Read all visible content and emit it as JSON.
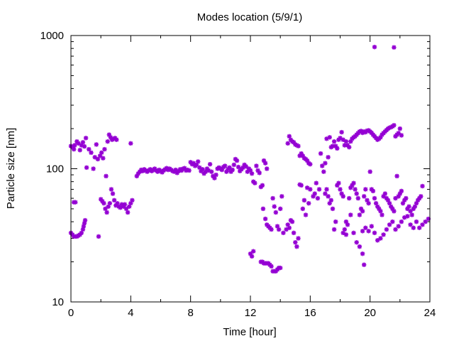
{
  "chart_data": {
    "type": "scatter",
    "title": "Modes location (5/9/1)",
    "xlabel": "Time [hour]",
    "ylabel": "Particle size [nm]",
    "xlim": [
      0,
      24
    ],
    "ylim": [
      10,
      1000
    ],
    "yscale": "log",
    "grid": false,
    "x_ticks": [
      0,
      4,
      8,
      12,
      16,
      20,
      24
    ],
    "x_tick_labels": [
      "0",
      "4",
      "8",
      "12",
      "16",
      "20",
      "24"
    ],
    "y_ticks": [
      10,
      100,
      1000
    ],
    "y_tick_labels": [
      "10",
      "100",
      "1000"
    ],
    "marker_color": "#9400d3",
    "points": [
      [
        0.0,
        148
      ],
      [
        0.1,
        145
      ],
      [
        0.2,
        140
      ],
      [
        0.25,
        150
      ],
      [
        0.4,
        160
      ],
      [
        0.5,
        155
      ],
      [
        0.6,
        138
      ],
      [
        0.7,
        150
      ],
      [
        0.8,
        158
      ],
      [
        0.9,
        147
      ],
      [
        1.0,
        170
      ],
      [
        1.05,
        102
      ],
      [
        1.2,
        140
      ],
      [
        1.35,
        132
      ],
      [
        1.5,
        100
      ],
      [
        1.6,
        122
      ],
      [
        1.7,
        152
      ],
      [
        1.8,
        118
      ],
      [
        1.95,
        125
      ],
      [
        2.05,
        132
      ],
      [
        2.15,
        120
      ],
      [
        2.25,
        140
      ],
      [
        2.35,
        88
      ],
      [
        2.45,
        160
      ],
      [
        2.55,
        180
      ],
      [
        2.65,
        172
      ],
      [
        2.75,
        165
      ],
      [
        2.85,
        168
      ],
      [
        2.95,
        170
      ],
      [
        3.05,
        165
      ],
      [
        0.0,
        33
      ],
      [
        0.1,
        32
      ],
      [
        0.2,
        31
      ],
      [
        0.3,
        31
      ],
      [
        0.4,
        31
      ],
      [
        0.5,
        31.5
      ],
      [
        0.6,
        32
      ],
      [
        0.7,
        33
      ],
      [
        0.8,
        35
      ],
      [
        0.85,
        37
      ],
      [
        0.9,
        39
      ],
      [
        0.95,
        41
      ],
      [
        0.2,
        56
      ],
      [
        0.3,
        56
      ],
      [
        1.85,
        31
      ],
      [
        2.0,
        59
      ],
      [
        2.1,
        57
      ],
      [
        2.2,
        55
      ],
      [
        2.3,
        50
      ],
      [
        2.4,
        47
      ],
      [
        2.5,
        52
      ],
      [
        2.6,
        55
      ],
      [
        2.7,
        70
      ],
      [
        2.8,
        65
      ],
      [
        2.9,
        58
      ],
      [
        3.0,
        53
      ],
      [
        3.1,
        55
      ],
      [
        3.2,
        52
      ],
      [
        3.3,
        51
      ],
      [
        3.4,
        54
      ],
      [
        3.5,
        52
      ],
      [
        3.6,
        54
      ],
      [
        3.7,
        50
      ],
      [
        3.8,
        47
      ],
      [
        3.9,
        52
      ],
      [
        4.0,
        55
      ],
      [
        4.1,
        58
      ],
      [
        4.0,
        155
      ],
      [
        4.4,
        88
      ],
      [
        4.5,
        92
      ],
      [
        4.6,
        95
      ],
      [
        4.7,
        98
      ],
      [
        4.8,
        96
      ],
      [
        4.9,
        99
      ],
      [
        5.0,
        97
      ],
      [
        5.1,
        95
      ],
      [
        5.2,
        97
      ],
      [
        5.3,
        99
      ],
      [
        5.4,
        96
      ],
      [
        5.5,
        98
      ],
      [
        5.6,
        100
      ],
      [
        5.7,
        97
      ],
      [
        5.8,
        95
      ],
      [
        5.9,
        98
      ],
      [
        6.0,
        96
      ],
      [
        6.1,
        94
      ],
      [
        6.2,
        97
      ],
      [
        6.3,
        99
      ],
      [
        6.4,
        101
      ],
      [
        6.5,
        98
      ],
      [
        6.6,
        100
      ],
      [
        6.7,
        98
      ],
      [
        6.8,
        96
      ],
      [
        6.9,
        95
      ],
      [
        7.0,
        98
      ],
      [
        7.1,
        93
      ],
      [
        7.2,
        96
      ],
      [
        7.3,
        99
      ],
      [
        7.4,
        97
      ],
      [
        7.5,
        100
      ],
      [
        7.6,
        101
      ],
      [
        7.7,
        97
      ],
      [
        7.8,
        98
      ],
      [
        7.9,
        97
      ],
      [
        8.0,
        112
      ],
      [
        8.1,
        108
      ],
      [
        8.2,
        110
      ],
      [
        8.3,
        105
      ],
      [
        8.4,
        107
      ],
      [
        8.5,
        113
      ],
      [
        8.6,
        102
      ],
      [
        8.7,
        96
      ],
      [
        8.8,
        99
      ],
      [
        8.9,
        92
      ],
      [
        9.0,
        95
      ],
      [
        9.1,
        100
      ],
      [
        9.2,
        97
      ],
      [
        9.3,
        108
      ],
      [
        9.4,
        95
      ],
      [
        9.5,
        88
      ],
      [
        9.6,
        85
      ],
      [
        9.7,
        90
      ],
      [
        9.8,
        100
      ],
      [
        9.9,
        102
      ],
      [
        10.0,
        100
      ],
      [
        10.1,
        98
      ],
      [
        10.2,
        103
      ],
      [
        10.3,
        105
      ],
      [
        10.4,
        95
      ],
      [
        10.5,
        99
      ],
      [
        10.6,
        102
      ],
      [
        10.7,
        95
      ],
      [
        10.8,
        98
      ],
      [
        10.9,
        107
      ],
      [
        11.0,
        118
      ],
      [
        11.1,
        115
      ],
      [
        11.2,
        103
      ],
      [
        11.3,
        96
      ],
      [
        11.4,
        99
      ],
      [
        11.5,
        102
      ],
      [
        11.6,
        107
      ],
      [
        11.7,
        104
      ],
      [
        11.8,
        95
      ],
      [
        11.9,
        100
      ],
      [
        12.0,
        97
      ],
      [
        12.1,
        92
      ],
      [
        12.2,
        80
      ],
      [
        12.3,
        78
      ],
      [
        12.4,
        105
      ],
      [
        12.5,
        97
      ],
      [
        12.6,
        93
      ],
      [
        12.7,
        73
      ],
      [
        12.8,
        75
      ],
      [
        12.9,
        115
      ],
      [
        13.0,
        110
      ],
      [
        13.1,
        100
      ],
      [
        12.85,
        50
      ],
      [
        13.0,
        42
      ],
      [
        13.1,
        38
      ],
      [
        13.2,
        37
      ],
      [
        13.3,
        36
      ],
      [
        13.4,
        35
      ],
      [
        13.5,
        60
      ],
      [
        13.6,
        52
      ],
      [
        13.7,
        47
      ],
      [
        13.8,
        37
      ],
      [
        13.9,
        35
      ],
      [
        14.0,
        50
      ],
      [
        14.1,
        62
      ],
      [
        14.2,
        33
      ],
      [
        14.4,
        35
      ],
      [
        14.5,
        38
      ],
      [
        14.6,
        36
      ],
      [
        14.7,
        41
      ],
      [
        14.8,
        40
      ],
      [
        14.9,
        33
      ],
      [
        12.0,
        23
      ],
      [
        12.1,
        22
      ],
      [
        12.2,
        24
      ],
      [
        12.7,
        20
      ],
      [
        12.8,
        20
      ],
      [
        12.9,
        19.5
      ],
      [
        13.0,
        19.5
      ],
      [
        13.1,
        19.5
      ],
      [
        13.2,
        19.5
      ],
      [
        13.3,
        19
      ],
      [
        13.4,
        18.5
      ],
      [
        13.5,
        17
      ],
      [
        13.6,
        17
      ],
      [
        13.7,
        17
      ],
      [
        13.8,
        17.5
      ],
      [
        13.9,
        18
      ],
      [
        14.0,
        18
      ],
      [
        14.5,
        155
      ],
      [
        14.6,
        175
      ],
      [
        14.7,
        165
      ],
      [
        14.8,
        160
      ],
      [
        14.9,
        158
      ],
      [
        15.0,
        152
      ],
      [
        15.1,
        150
      ],
      [
        15.2,
        148
      ],
      [
        15.3,
        125
      ],
      [
        15.4,
        130
      ],
      [
        15.5,
        125
      ],
      [
        15.6,
        120
      ],
      [
        15.7,
        118
      ],
      [
        15.8,
        115
      ],
      [
        15.9,
        110
      ],
      [
        16.0,
        108
      ],
      [
        15.0,
        28
      ],
      [
        15.1,
        26
      ],
      [
        15.2,
        30
      ],
      [
        15.3,
        76
      ],
      [
        15.4,
        75
      ],
      [
        15.5,
        50
      ],
      [
        15.6,
        58
      ],
      [
        15.7,
        45
      ],
      [
        15.8,
        72
      ],
      [
        15.9,
        55
      ],
      [
        16.0,
        70
      ],
      [
        16.2,
        62
      ],
      [
        16.3,
        65
      ],
      [
        16.4,
        78
      ],
      [
        16.5,
        60
      ],
      [
        16.6,
        70
      ],
      [
        16.7,
        130
      ],
      [
        16.8,
        105
      ],
      [
        16.9,
        95
      ],
      [
        17.0,
        110
      ],
      [
        17.1,
        168
      ],
      [
        17.2,
        122
      ],
      [
        17.3,
        172
      ],
      [
        17.4,
        145
      ],
      [
        17.5,
        148
      ],
      [
        17.6,
        160
      ],
      [
        17.7,
        148
      ],
      [
        17.8,
        142
      ],
      [
        17.9,
        165
      ],
      [
        18.0,
        170
      ],
      [
        18.1,
        188
      ],
      [
        18.2,
        165
      ],
      [
        18.3,
        150
      ],
      [
        18.4,
        160
      ],
      [
        18.5,
        150
      ],
      [
        18.6,
        145
      ],
      [
        18.7,
        160
      ],
      [
        18.8,
        168
      ],
      [
        18.9,
        172
      ],
      [
        19.0,
        175
      ],
      [
        19.1,
        180
      ],
      [
        19.2,
        185
      ],
      [
        19.3,
        190
      ],
      [
        19.4,
        192
      ],
      [
        19.5,
        186
      ],
      [
        19.6,
        190
      ],
      [
        19.7,
        188
      ],
      [
        19.8,
        193
      ],
      [
        19.9,
        194
      ],
      [
        20.0,
        190
      ],
      [
        20.1,
        186
      ],
      [
        20.2,
        180
      ],
      [
        20.3,
        175
      ],
      [
        20.4,
        170
      ],
      [
        20.5,
        165
      ],
      [
        20.6,
        168
      ],
      [
        20.7,
        172
      ],
      [
        20.8,
        180
      ],
      [
        20.9,
        185
      ],
      [
        21.0,
        190
      ],
      [
        21.1,
        195
      ],
      [
        21.2,
        200
      ],
      [
        21.3,
        203
      ],
      [
        21.4,
        205
      ],
      [
        21.5,
        208
      ],
      [
        21.6,
        212
      ],
      [
        21.7,
        175
      ],
      [
        21.8,
        180
      ],
      [
        21.9,
        185
      ],
      [
        22.0,
        200
      ],
      [
        22.1,
        178
      ],
      [
        17.0,
        65
      ],
      [
        17.1,
        70
      ],
      [
        17.2,
        62
      ],
      [
        17.3,
        55
      ],
      [
        17.4,
        58
      ],
      [
        17.5,
        50
      ],
      [
        17.6,
        35
      ],
      [
        17.7,
        40
      ],
      [
        17.8,
        75
      ],
      [
        17.9,
        78
      ],
      [
        18.0,
        70
      ],
      [
        18.1,
        65
      ],
      [
        18.2,
        62
      ],
      [
        18.3,
        35
      ],
      [
        18.4,
        40
      ],
      [
        18.5,
        38
      ],
      [
        18.6,
        60
      ],
      [
        18.7,
        72
      ],
      [
        18.8,
        75
      ],
      [
        18.9,
        78
      ],
      [
        19.0,
        70
      ],
      [
        19.1,
        65
      ],
      [
        19.2,
        60
      ],
      [
        19.3,
        45
      ],
      [
        19.4,
        50
      ],
      [
        19.5,
        48
      ],
      [
        19.6,
        62
      ],
      [
        19.7,
        70
      ],
      [
        19.8,
        58
      ],
      [
        19.9,
        55
      ],
      [
        20.0,
        95
      ],
      [
        20.1,
        70
      ],
      [
        20.2,
        68
      ],
      [
        20.3,
        60
      ],
      [
        20.4,
        55
      ],
      [
        20.5,
        52
      ],
      [
        20.6,
        50
      ],
      [
        20.7,
        48
      ],
      [
        20.8,
        45
      ],
      [
        20.9,
        62
      ],
      [
        21.0,
        65
      ],
      [
        21.1,
        60
      ],
      [
        21.2,
        58
      ],
      [
        21.3,
        55
      ],
      [
        21.4,
        52
      ],
      [
        21.5,
        50
      ],
      [
        21.6,
        48
      ],
      [
        21.7,
        60
      ],
      [
        21.8,
        88
      ],
      [
        21.9,
        62
      ],
      [
        22.0,
        65
      ],
      [
        22.1,
        68
      ],
      [
        22.2,
        55
      ],
      [
        22.3,
        58
      ],
      [
        22.4,
        60
      ],
      [
        22.5,
        50
      ],
      [
        22.6,
        52
      ],
      [
        22.7,
        48
      ],
      [
        22.8,
        45
      ],
      [
        22.9,
        50
      ],
      [
        23.0,
        52
      ],
      [
        23.1,
        55
      ],
      [
        23.2,
        58
      ],
      [
        23.3,
        60
      ],
      [
        23.4,
        62
      ],
      [
        23.5,
        74
      ],
      [
        18.2,
        33
      ],
      [
        18.4,
        32
      ],
      [
        18.7,
        45
      ],
      [
        18.9,
        33
      ],
      [
        19.1,
        28
      ],
      [
        19.3,
        26
      ],
      [
        19.5,
        34
      ],
      [
        19.7,
        36
      ],
      [
        19.9,
        34
      ],
      [
        20.1,
        37
      ],
      [
        20.3,
        33
      ],
      [
        20.5,
        29
      ],
      [
        20.7,
        30
      ],
      [
        20.9,
        32
      ],
      [
        21.1,
        35
      ],
      [
        21.3,
        38
      ],
      [
        21.5,
        40
      ],
      [
        21.7,
        35
      ],
      [
        21.9,
        37
      ],
      [
        22.1,
        40
      ],
      [
        22.3,
        43
      ],
      [
        22.5,
        44
      ],
      [
        22.7,
        38
      ],
      [
        22.9,
        36
      ],
      [
        23.1,
        40
      ],
      [
        23.3,
        36
      ],
      [
        23.5,
        38
      ],
      [
        23.7,
        40
      ],
      [
        23.9,
        42
      ],
      [
        19.5,
        23
      ],
      [
        19.6,
        19
      ],
      [
        20.3,
        820
      ],
      [
        21.6,
        815
      ]
    ]
  }
}
